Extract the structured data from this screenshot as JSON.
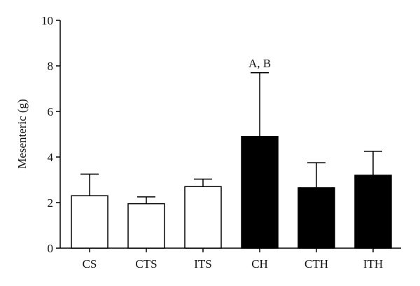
{
  "chart_data": {
    "type": "bar",
    "title": "",
    "xlabel": "",
    "ylabel": "Mesenteric (g)",
    "ylim": [
      0,
      10
    ],
    "yticks": [
      0,
      2,
      4,
      6,
      8,
      10
    ],
    "grid": false,
    "categories": [
      "CS",
      "CTS",
      "ITS",
      "CH",
      "CTH",
      "ITH"
    ],
    "values": [
      2.3,
      1.95,
      2.7,
      4.9,
      2.65,
      3.2
    ],
    "error_upper": [
      0.95,
      0.3,
      0.33,
      2.8,
      1.1,
      1.05
    ],
    "bar_fills": [
      "#ffffff",
      "#ffffff",
      "#ffffff",
      "#000000",
      "#000000",
      "#000000"
    ],
    "bar_stroke": "#000000",
    "annotations": [
      {
        "category": "CH",
        "text": "A, B"
      }
    ]
  }
}
